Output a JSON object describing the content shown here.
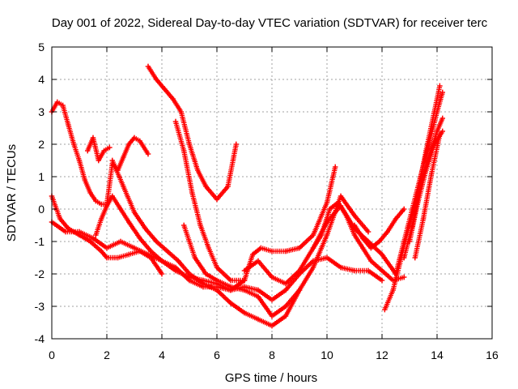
{
  "chart_data": {
    "type": "scatter",
    "title": "Day 001 of 2022, Sidereal Day-to-day VTEC variation (SDTVAR) for receiver terc",
    "xlabel": "GPS time / hours",
    "ylabel": "SDTVAR / TECUs",
    "xlim": [
      0,
      16
    ],
    "ylim": [
      -4,
      5
    ],
    "xticks": [
      0,
      2,
      4,
      6,
      8,
      10,
      12,
      14,
      16
    ],
    "yticks": [
      -4,
      -3,
      -2,
      -1,
      0,
      1,
      2,
      3,
      4,
      5
    ],
    "grid": true,
    "legend": "none",
    "marker": "+",
    "color": "#ff0000",
    "series": [
      {
        "x": [
          0.0,
          0.2,
          0.4,
          0.6,
          0.8,
          1.0,
          1.2,
          1.4,
          1.6,
          1.8,
          2.0,
          2.2,
          2.4,
          2.6,
          2.8,
          3.0,
          3.2,
          3.5
        ],
        "y": [
          3.0,
          3.3,
          3.2,
          2.6,
          2.0,
          1.5,
          0.9,
          0.5,
          0.25,
          0.15,
          0.15,
          1.4,
          1.2,
          1.6,
          2.0,
          2.2,
          2.1,
          1.7
        ]
      },
      {
        "x": [
          1.3,
          1.5,
          1.7,
          1.9,
          2.1
        ],
        "y": [
          1.8,
          2.2,
          1.5,
          1.8,
          1.9
        ]
      },
      {
        "x": [
          0.0,
          0.5,
          1.0,
          1.5,
          2.0,
          2.5,
          3.0,
          3.5,
          4.0,
          4.5,
          5.0,
          5.5,
          6.0,
          6.5,
          7.0
        ],
        "y": [
          -0.4,
          -0.7,
          -0.7,
          -0.9,
          -1.2,
          -1.0,
          -1.2,
          -1.4,
          -1.6,
          -1.9,
          -2.1,
          -2.2,
          -2.3,
          -2.5,
          -2.2
        ]
      },
      {
        "x": [
          0.0,
          0.3,
          0.6,
          1.0,
          1.4,
          1.8,
          2.0,
          2.4,
          2.8,
          3.2,
          3.6,
          4.0
        ],
        "y": [
          0.4,
          -0.3,
          -0.6,
          -0.8,
          -1.0,
          -1.3,
          -1.5,
          -1.5,
          -1.4,
          -1.3,
          -1.5,
          -2.0
        ]
      },
      {
        "x": [
          1.6,
          1.8,
          2.0,
          2.2,
          2.5,
          2.8,
          3.2,
          3.6,
          4.0,
          4.5,
          5.0,
          5.5,
          6.0,
          6.5,
          7.0,
          7.5,
          8.0,
          8.5,
          9.0,
          9.5,
          10.0,
          10.5,
          11.0,
          11.5,
          12.0
        ],
        "y": [
          -0.8,
          -0.3,
          0.1,
          0.4,
          0.0,
          -0.4,
          -0.9,
          -1.3,
          -1.6,
          -1.8,
          -2.2,
          -2.4,
          -2.4,
          -2.5,
          -2.4,
          -2.5,
          -2.8,
          -2.5,
          -2.0,
          -1.6,
          -1.5,
          -1.8,
          -1.9,
          -1.9,
          -2.2
        ]
      },
      {
        "x": [
          2.2,
          2.6,
          3.0,
          3.4,
          3.8,
          4.2,
          4.6,
          5.0,
          5.5,
          6.0,
          6.5,
          7.0,
          7.5,
          8.0,
          8.5,
          9.0
        ],
        "y": [
          1.5,
          0.7,
          -0.1,
          -0.6,
          -1.0,
          -1.3,
          -1.6,
          -2.0,
          -2.3,
          -2.5,
          -2.9,
          -3.2,
          -3.4,
          -3.6,
          -3.3,
          -2.5
        ]
      },
      {
        "x": [
          3.5,
          3.8,
          4.1,
          4.4,
          4.7,
          5.0,
          5.3,
          5.6,
          6.0,
          6.4,
          6.7
        ],
        "y": [
          4.4,
          4.0,
          3.7,
          3.4,
          3.0,
          2.0,
          1.2,
          0.7,
          0.3,
          0.7,
          2.0
        ]
      },
      {
        "x": [
          4.5,
          4.8,
          5.1,
          5.4,
          5.7,
          6.0,
          6.5,
          7.0,
          7.3,
          7.6,
          8.0,
          8.5,
          9.0,
          9.5,
          10.0,
          10.3
        ],
        "y": [
          2.7,
          1.8,
          0.5,
          -0.5,
          -1.2,
          -1.8,
          -2.2,
          -2.2,
          -1.4,
          -1.2,
          -1.3,
          -1.3,
          -1.2,
          -0.8,
          0.2,
          1.3
        ]
      },
      {
        "x": [
          4.8,
          5.2,
          5.6,
          6.0,
          6.5,
          7.0,
          7.5,
          8.0,
          8.5,
          9.0,
          9.5,
          10.0,
          10.5,
          11.0,
          11.5
        ],
        "y": [
          -0.5,
          -1.5,
          -2.0,
          -2.2,
          -2.4,
          -2.5,
          -2.7,
          -3.3,
          -3.0,
          -2.5,
          -1.8,
          -0.8,
          0.4,
          -0.2,
          -0.7
        ]
      },
      {
        "x": [
          7.0,
          7.5,
          8.0,
          8.5,
          9.0,
          9.5,
          10.0,
          10.5,
          11.0,
          11.5,
          12.0,
          12.5
        ],
        "y": [
          -1.9,
          -1.6,
          -2.1,
          -2.3,
          -1.9,
          -1.2,
          -0.4,
          0.1,
          -0.6,
          -1.0,
          -1.4,
          -2.0
        ]
      },
      {
        "x": [
          9.5,
          9.8,
          10.1,
          10.4,
          10.7,
          11.0,
          11.3,
          11.6,
          12.0,
          12.4,
          12.8
        ],
        "y": [
          -1.2,
          -0.8,
          0.0,
          0.2,
          -0.2,
          -0.8,
          -1.2,
          -1.6,
          -1.9,
          -2.2,
          -2.1
        ]
      },
      {
        "x": [
          11.0,
          11.3,
          11.6,
          11.9,
          12.2,
          12.5,
          12.8
        ],
        "y": [
          -0.5,
          -0.9,
          -1.2,
          -1.0,
          -0.7,
          -0.3,
          0.0
        ]
      },
      {
        "x": [
          12.1,
          12.4,
          12.7,
          13.0,
          13.3,
          13.6,
          13.9,
          14.1
        ],
        "y": [
          -3.1,
          -2.5,
          -1.5,
          -0.5,
          0.5,
          1.8,
          3.0,
          3.8
        ]
      },
      {
        "x": [
          12.5,
          12.8,
          13.1,
          13.4,
          13.7,
          14.0,
          14.2
        ],
        "y": [
          -2.0,
          -1.0,
          0.0,
          1.0,
          2.0,
          3.0,
          3.6
        ]
      },
      {
        "x": [
          12.8,
          13.1,
          13.4,
          13.7,
          14.0,
          14.2
        ],
        "y": [
          -1.5,
          -0.5,
          0.8,
          1.6,
          2.4,
          2.8
        ]
      },
      {
        "x": [
          13.0,
          13.3,
          13.6,
          13.9,
          14.2
        ],
        "y": [
          -1.0,
          0.2,
          1.2,
          2.0,
          2.4
        ]
      },
      {
        "x": [
          13.2,
          13.5,
          13.8,
          14.1
        ],
        "y": [
          -1.5,
          -0.3,
          1.1,
          2.3
        ]
      }
    ]
  }
}
